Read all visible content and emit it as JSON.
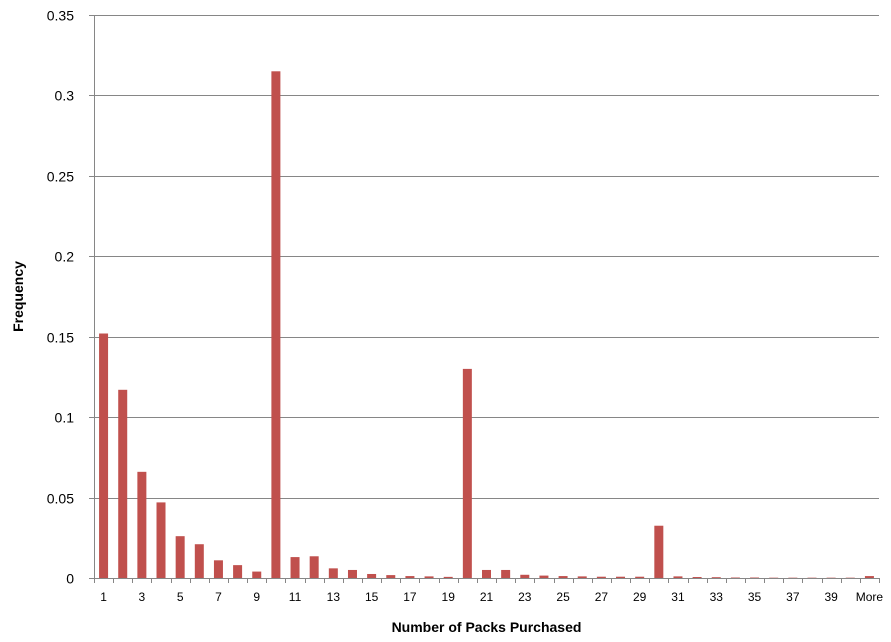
{
  "chart_data": {
    "type": "bar",
    "title": "",
    "xlabel": "Number of Packs Purchased",
    "ylabel": "Frequency",
    "ylim": [
      0,
      0.35
    ],
    "yticks": [
      "0",
      "0.05",
      "0.1",
      "0.15",
      "0.2",
      "0.25",
      "0.3",
      "0.35"
    ],
    "grid": true,
    "categories": [
      "1",
      "2",
      "3",
      "4",
      "5",
      "6",
      "7",
      "8",
      "9",
      "10",
      "11",
      "12",
      "13",
      "14",
      "15",
      "16",
      "17",
      "18",
      "19",
      "20",
      "21",
      "22",
      "23",
      "24",
      "25",
      "26",
      "27",
      "28",
      "29",
      "30",
      "31",
      "32",
      "33",
      "34",
      "35",
      "36",
      "37",
      "38",
      "39",
      "40",
      "More"
    ],
    "xtick_labels_shown": [
      "1",
      "3",
      "5",
      "7",
      "9",
      "11",
      "13",
      "15",
      "17",
      "19",
      "21",
      "23",
      "25",
      "27",
      "29",
      "31",
      "33",
      "35",
      "37",
      "39",
      "More"
    ],
    "values": [
      0.152,
      0.117,
      0.066,
      0.047,
      0.026,
      0.021,
      0.011,
      0.008,
      0.004,
      0.315,
      0.013,
      0.0135,
      0.006,
      0.005,
      0.0025,
      0.0018,
      0.0012,
      0.001,
      0.0007,
      0.13,
      0.005,
      0.005,
      0.002,
      0.0015,
      0.0012,
      0.001,
      0.0008,
      0.0008,
      0.0008,
      0.0325,
      0.001,
      0.0006,
      0.0005,
      0.0003,
      0.0003,
      0.0002,
      0.0002,
      0.0002,
      0.0002,
      0.0002,
      0.0012
    ],
    "bar_color": "#c0504d"
  }
}
